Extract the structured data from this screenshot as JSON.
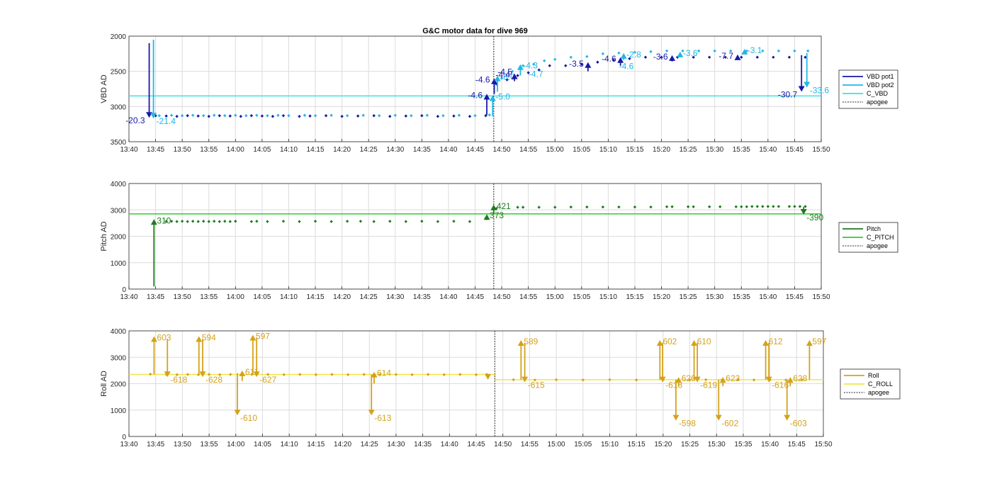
{
  "figure_title": "G&C motor data for dive 969",
  "colors": {
    "vbd_pot1": "#1818a8",
    "vbd_pot2": "#21b7e6",
    "c_vbd": "#3ee0e0",
    "pitch": "#1f7a1f",
    "c_pitch": "#33cc33",
    "roll": "#d4a21a",
    "c_roll": "#f0e64a",
    "apogee": "#555555"
  },
  "chart_data": [
    {
      "type": "scatter",
      "panel": "vbd",
      "title": "G&C motor data for dive 969",
      "ylabel": "VBD AD",
      "xlabel": "",
      "x_ticks": [
        "13:40",
        "13:45",
        "13:50",
        "13:55",
        "14:00",
        "14:05",
        "14:10",
        "14:15",
        "14:20",
        "14:25",
        "14:30",
        "14:35",
        "14:40",
        "14:45",
        "14:50",
        "14:55",
        "15:00",
        "15:05",
        "15:10",
        "15:15",
        "15:20",
        "15:25",
        "15:30",
        "15:35",
        "15:40",
        "15:45",
        "15:50"
      ],
      "x_range_minutes": [
        0,
        130
      ],
      "y_ticks": [
        "2000",
        "2500",
        "3000",
        "3500"
      ],
      "ylim": [
        2000,
        3500
      ],
      "y_reversed": true,
      "grid": true,
      "legend_position": "right",
      "legend": [
        "VBD pot1",
        "VBD pot2",
        "C_VBD",
        "apogee"
      ],
      "apogee_minute": 68.5,
      "reference_lines": [
        {
          "name": "C_VBD",
          "y": 2850
        }
      ],
      "series": [
        {
          "name": "VBD pot1",
          "x": [
            5,
            7,
            9,
            11,
            13,
            15,
            17,
            19,
            21,
            23,
            25,
            27,
            29,
            32,
            34,
            37,
            40,
            43,
            46,
            49,
            52,
            55,
            58,
            61,
            64,
            67,
            69,
            71,
            73,
            75,
            77,
            79,
            82,
            85,
            88,
            91,
            94,
            97,
            100,
            103,
            106,
            109,
            112,
            115,
            118,
            121,
            124,
            127
          ],
          "y": [
            3130,
            3135,
            3140,
            3130,
            3135,
            3140,
            3130,
            3135,
            3140,
            3130,
            3135,
            3140,
            3130,
            3140,
            3135,
            3130,
            3140,
            3135,
            3130,
            3140,
            3135,
            3130,
            3140,
            3135,
            3140,
            3130,
            2680,
            2620,
            2560,
            2520,
            2480,
            2420,
            2420,
            2400,
            2370,
            2340,
            2320,
            2300,
            2300,
            2300,
            2300,
            2300,
            2300,
            2300,
            2300,
            2300,
            2300,
            2300
          ]
        },
        {
          "name": "VBD pot2",
          "x": [
            5.7,
            8,
            10,
            12,
            14,
            16,
            18,
            20,
            22,
            24,
            26,
            28,
            30,
            33,
            35,
            38,
            41,
            44,
            47,
            50,
            53,
            56,
            59,
            62,
            65,
            67.7,
            70,
            72,
            74,
            76,
            78,
            80,
            83,
            86,
            89,
            92,
            95,
            98,
            101,
            104,
            107,
            110,
            113,
            116,
            119,
            122,
            125,
            127.5
          ],
          "y": [
            3130,
            3125,
            3130,
            3125,
            3130,
            3125,
            3130,
            3125,
            3130,
            3125,
            3130,
            3125,
            3130,
            3125,
            3130,
            3125,
            3130,
            3125,
            3130,
            3125,
            3130,
            3125,
            3130,
            3125,
            3130,
            3120,
            2600,
            2500,
            2420,
            2400,
            2350,
            2330,
            2300,
            2290,
            2250,
            2240,
            2230,
            2220,
            2210,
            2210,
            2210,
            2210,
            2210,
            2210,
            2210,
            2210,
            2210,
            2210
          ]
        },
        {
          "name": "C_VBD",
          "x": [
            0,
            130
          ],
          "y": [
            2850,
            2850
          ]
        }
      ],
      "arrows": [
        {
          "series": "VBD pot1",
          "x": 3.8,
          "from": 2100,
          "to": 3160,
          "label": "-20.3"
        },
        {
          "series": "VBD pot2",
          "x": 4.6,
          "from": 2050,
          "to": 3170,
          "label": "-21.4"
        },
        {
          "series": "VBD pot1",
          "x": 67.2,
          "from": 3120,
          "to": 2820,
          "label": "-4.6"
        },
        {
          "series": "VBD pot2",
          "x": 68.3,
          "from": 3140,
          "to": 2840,
          "label": "-5.0"
        },
        {
          "series": "VBD pot1",
          "x": 68.6,
          "from": 2820,
          "to": 2600,
          "label": "-4.6"
        },
        {
          "series": "VBD pot2",
          "x": 69.2,
          "from": 2790,
          "to": 2560,
          "label": "-5.0"
        },
        {
          "series": "VBD pot1",
          "x": 72.4,
          "from": 2640,
          "to": 2530,
          "label": "-4.4"
        },
        {
          "series": "VBD pot2",
          "x": 73.5,
          "from": 2560,
          "to": 2400,
          "label": "-4.3"
        },
        {
          "series": "VBD pot1",
          "x": 86.2,
          "from": 2500,
          "to": 2370,
          "label": "-3.5"
        },
        {
          "series": "VBD pot1",
          "x": 92.3,
          "from": 2420,
          "to": 2300,
          "label": "-4.6"
        },
        {
          "series": "VBD pot2",
          "x": 92.9,
          "from": 2340,
          "to": 2240,
          "label": "-2.8"
        },
        {
          "series": "VBD pot1",
          "x": 102.0,
          "from": 2360,
          "to": 2270,
          "label": "-3.6"
        },
        {
          "series": "VBD pot2",
          "x": 103.5,
          "from": 2290,
          "to": 2220,
          "label": "-3.6"
        },
        {
          "series": "VBD pot1",
          "x": 114.3,
          "from": 2330,
          "to": 2260,
          "label": "-7.7"
        },
        {
          "series": "VBD pot2",
          "x": 115.6,
          "from": 2260,
          "to": 2180,
          "label": "-3.1"
        },
        {
          "series": "VBD pot1",
          "x": 126.3,
          "from": 2270,
          "to": 2790,
          "label": "-30.7"
        },
        {
          "series": "VBD pot2",
          "x": 127.3,
          "from": 2240,
          "to": 2730,
          "label": "-33.6"
        }
      ],
      "extra_labels": [
        "-4.7",
        "-4.6",
        "-4.5"
      ]
    },
    {
      "type": "scatter",
      "panel": "pitch",
      "ylabel": "Pitch AD",
      "xlabel": "",
      "x_ticks": [
        "13:40",
        "13:45",
        "13:50",
        "13:55",
        "14:00",
        "14:05",
        "14:10",
        "14:15",
        "14:20",
        "14:25",
        "14:30",
        "14:35",
        "14:40",
        "14:45",
        "14:50",
        "14:55",
        "15:00",
        "15:05",
        "15:10",
        "15:15",
        "15:20",
        "15:25",
        "15:30",
        "15:35",
        "15:40",
        "15:45",
        "15:50"
      ],
      "x_range_minutes": [
        0,
        130
      ],
      "y_ticks": [
        "0",
        "1000",
        "2000",
        "3000",
        "4000"
      ],
      "ylim": [
        0,
        4000
      ],
      "grid": true,
      "legend_position": "right",
      "legend": [
        "Pitch",
        "C_PITCH",
        "apogee"
      ],
      "apogee_minute": 68.5,
      "reference_lines": [
        {
          "name": "C_PITCH",
          "y": 2850
        }
      ],
      "series": [
        {
          "name": "Pitch",
          "x": [
            7,
            8,
            9,
            10,
            11,
            12,
            13,
            14,
            15,
            16,
            17,
            18,
            19,
            20,
            23,
            24,
            26,
            29,
            32,
            35,
            38,
            41,
            43.5,
            46,
            49,
            52,
            55,
            58,
            61,
            64,
            69,
            73,
            74,
            77,
            80,
            83,
            86,
            89,
            92,
            95,
            98,
            101,
            102,
            105,
            106,
            109,
            111,
            114,
            115,
            116,
            117,
            118,
            119,
            120,
            121,
            122,
            124,
            125,
            126,
            127
          ],
          "y": [
            2560,
            2570,
            2560,
            2570,
            2560,
            2570,
            2560,
            2570,
            2560,
            2570,
            2560,
            2570,
            2560,
            2570,
            2560,
            2570,
            2560,
            2570,
            2560,
            2570,
            2560,
            2570,
            2570,
            2560,
            2570,
            2560,
            2570,
            2560,
            2570,
            2560,
            3050,
            3100,
            3100,
            3100,
            3100,
            3110,
            3110,
            3110,
            3110,
            3110,
            3110,
            3120,
            3120,
            3120,
            3120,
            3120,
            3120,
            3120,
            3120,
            3120,
            3130,
            3130,
            3130,
            3130,
            3130,
            3130,
            3130,
            3130,
            3130,
            3130
          ]
        },
        {
          "name": "C_PITCH",
          "x": [
            0,
            130
          ],
          "y": [
            2850,
            2850
          ]
        }
      ],
      "arrows": [
        {
          "x": 4.7,
          "from": 100,
          "to": 2650,
          "label": "310"
        },
        {
          "x": 67.2,
          "from": 2620,
          "to": 2840,
          "label": "373"
        },
        {
          "x": 68.5,
          "from": 2870,
          "to": 3200,
          "label": "421"
        },
        {
          "x": 126.7,
          "from": 3110,
          "to": 2820,
          "label": "-390"
        }
      ]
    },
    {
      "type": "scatter",
      "panel": "roll",
      "ylabel": "Roll AD",
      "xlabel": "",
      "x_ticks": [
        "13:40",
        "13:45",
        "13:50",
        "13:55",
        "14:00",
        "14:05",
        "14:10",
        "14:15",
        "14:20",
        "14:25",
        "14:30",
        "14:35",
        "14:40",
        "14:45",
        "14:50",
        "14:55",
        "15:00",
        "15:05",
        "15:10",
        "15:15",
        "15:20",
        "15:25",
        "15:30",
        "15:35",
        "15:40",
        "15:45",
        "15:50"
      ],
      "x_range_minutes": [
        0,
        130
      ],
      "y_ticks": [
        "0",
        "1000",
        "2000",
        "3000",
        "4000"
      ],
      "ylim": [
        0,
        4000
      ],
      "grid": true,
      "legend_position": "right",
      "legend": [
        "Roll",
        "C_ROLL",
        "apogee"
      ],
      "apogee_minute": 68.5,
      "reference_lines": [
        {
          "name": "C_ROLL",
          "y_before_apogee": 2350,
          "y_after_apogee": 2150
        }
      ],
      "series": [
        {
          "name": "Roll",
          "x": [
            4,
            7,
            9,
            11,
            13,
            15,
            17,
            19,
            21,
            23,
            26,
            29,
            32,
            35,
            38,
            41,
            44,
            47,
            50,
            53,
            56,
            59,
            62,
            65,
            67,
            72,
            76,
            80,
            85,
            90,
            95,
            100,
            105,
            108,
            111,
            114,
            117,
            120,
            123,
            126
          ],
          "y": [
            2360,
            2350,
            2340,
            2350,
            2340,
            2350,
            2340,
            2350,
            2340,
            2350,
            2350,
            2340,
            2350,
            2340,
            2350,
            2340,
            2350,
            2340,
            2350,
            2340,
            2350,
            2340,
            2350,
            2340,
            2350,
            2150,
            2140,
            2150,
            2140,
            2150,
            2140,
            2150,
            2140,
            2150,
            2140,
            2150,
            2140,
            2150,
            2140,
            2150
          ]
        },
        {
          "name": "C_ROLL",
          "x": [
            0,
            68.5,
            68.5,
            130
          ],
          "y": [
            2350,
            2350,
            2150,
            2150
          ]
        }
      ],
      "arrows": [
        {
          "x": 4.7,
          "from": 2350,
          "to": 3800,
          "label": "603"
        },
        {
          "x": 7.2,
          "from": 3700,
          "to": 2250,
          "label": "-618"
        },
        {
          "x": 13.1,
          "from": 2350,
          "to": 3800,
          "label": "594"
        },
        {
          "x": 13.8,
          "from": 3700,
          "to": 2250,
          "label": "-628"
        },
        {
          "x": 20.3,
          "from": 2400,
          "to": 800,
          "label": "-610"
        },
        {
          "x": 21.2,
          "from": 2100,
          "to": 2500,
          "label": "611"
        },
        {
          "x": 23.2,
          "from": 2350,
          "to": 3850,
          "label": "597"
        },
        {
          "x": 23.9,
          "from": 3750,
          "to": 2250,
          "label": "-627"
        },
        {
          "x": 45.4,
          "from": 2350,
          "to": 800,
          "label": "-613"
        },
        {
          "x": 45.9,
          "from": 2000,
          "to": 2450,
          "label": "614"
        },
        {
          "x": 67.2,
          "from": 2350,
          "to": 2150,
          "label": ""
        },
        {
          "x": 73.4,
          "from": 2150,
          "to": 3650,
          "label": "589"
        },
        {
          "x": 74.1,
          "from": 3550,
          "to": 2050,
          "label": "-615"
        },
        {
          "x": 99.4,
          "from": 2150,
          "to": 3650,
          "label": "602"
        },
        {
          "x": 99.9,
          "from": 3550,
          "to": 2050,
          "label": "-618"
        },
        {
          "x": 102.4,
          "from": 2150,
          "to": 600,
          "label": "-598"
        },
        {
          "x": 102.9,
          "from": 1900,
          "to": 2250,
          "label": "626"
        },
        {
          "x": 105.8,
          "from": 2150,
          "to": 3650,
          "label": "610"
        },
        {
          "x": 106.4,
          "from": 3550,
          "to": 2050,
          "label": "-619"
        },
        {
          "x": 110.4,
          "from": 2150,
          "to": 600,
          "label": "-602"
        },
        {
          "x": 111.2,
          "from": 1900,
          "to": 2250,
          "label": "623"
        },
        {
          "x": 119.2,
          "from": 2150,
          "to": 3650,
          "label": "612"
        },
        {
          "x": 119.8,
          "from": 3550,
          "to": 2050,
          "label": "-616"
        },
        {
          "x": 123.2,
          "from": 2150,
          "to": 600,
          "label": "-603"
        },
        {
          "x": 123.8,
          "from": 1900,
          "to": 2250,
          "label": "628"
        },
        {
          "x": 127.4,
          "from": 2150,
          "to": 3650,
          "label": "597"
        }
      ]
    }
  ]
}
